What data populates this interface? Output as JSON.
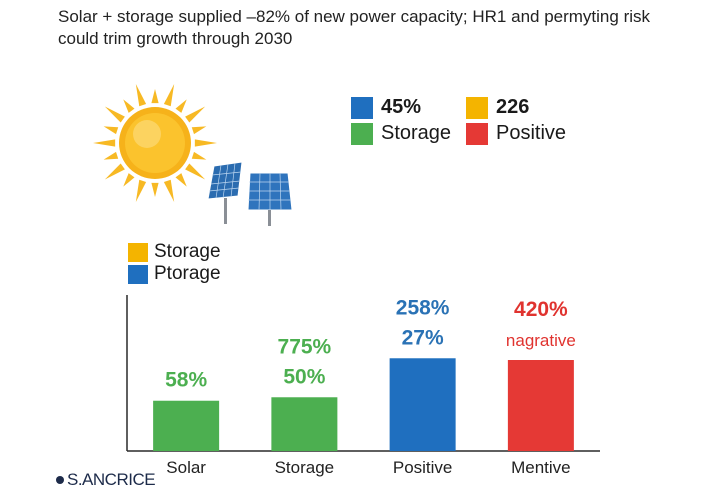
{
  "subtitle": "Solar + storage supplied –82% of new power capacity; HR1 and permyting risk could trim growth through 2030",
  "brand": "S.ANCRICE",
  "legend_top": [
    {
      "label": "45%",
      "color": "#1f6fbf",
      "bold": true
    },
    {
      "label": "226",
      "color": "#f4b400",
      "bold": true
    },
    {
      "label": "Storage",
      "color": "#4caf50",
      "bold": false
    },
    {
      "label": "Positive",
      "color": "#e53935",
      "bold": false
    }
  ],
  "legend_left": [
    {
      "label": "Storage",
      "color": "#f4b400"
    },
    {
      "label": "Ptorage",
      "color": "#1f6fbf"
    }
  ],
  "chart_data": {
    "type": "bar",
    "categories": [
      "Solar",
      "Storage",
      "Positive",
      "Mentive"
    ],
    "values": [
      58,
      62,
      107,
      105
    ],
    "colors": [
      "#4caf50",
      "#4caf50",
      "#1f6fbf",
      "#e53935"
    ],
    "data_labels": [
      [
        "58%"
      ],
      [
        "775%",
        "50%"
      ],
      [
        "258%",
        "27%"
      ],
      [
        "420%",
        "nagrative"
      ]
    ],
    "ylim": [
      0,
      180
    ],
    "grid": false
  }
}
